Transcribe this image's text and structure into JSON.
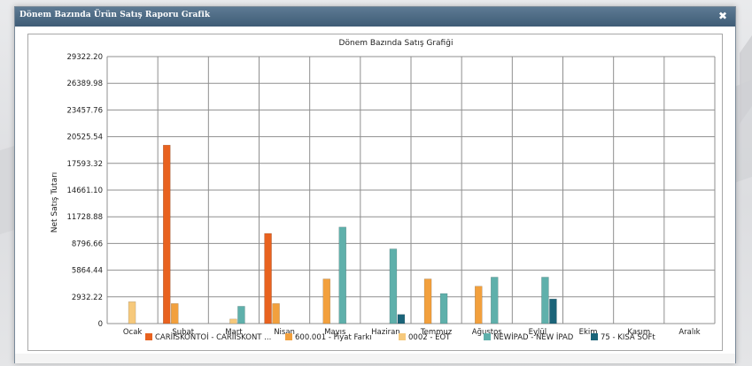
{
  "window": {
    "title": "Dönem Bazında Ürün Satış Raporu Grafik",
    "close_label": "✖"
  },
  "chart_data": {
    "type": "bar",
    "title": "Dönem Bazında Satış Grafiği",
    "xlabel": "",
    "ylabel": "Net Satış Tutarı",
    "ylim": [
      0,
      29322.2
    ],
    "yticks": [
      "29322.20",
      "26389.98",
      "23457.76",
      "20525.54",
      "17593.32",
      "14661.10",
      "11728.88",
      "8796.66",
      "5864.44",
      "2932.22",
      "0"
    ],
    "categories": [
      "Ocak",
      "Şubat",
      "Mart",
      "Nisan",
      "Mayıs",
      "Haziran",
      "Temmuz",
      "Ağustos",
      "Eylül",
      "Ekim",
      "Kasım",
      "Aralık"
    ],
    "grid": true,
    "legend_position": "bottom",
    "series": [
      {
        "name": "CARİİSKONTOİ - CARİİSKONT ...",
        "color": "#e8621f",
        "values": [
          0,
          19600,
          0,
          9900,
          0,
          0,
          0,
          0,
          0,
          0,
          0,
          0
        ]
      },
      {
        "name": "600.001 - Fiyat Farkı",
        "color": "#f2a03d",
        "values": [
          0,
          2200,
          0,
          2200,
          4900,
          0,
          4900,
          4100,
          0,
          0,
          0,
          0
        ]
      },
      {
        "name": "0002 - EOT",
        "color": "#f6c97c",
        "values": [
          2400,
          0,
          500,
          0,
          0,
          0,
          0,
          0,
          0,
          0,
          0,
          0
        ]
      },
      {
        "name": "NEWİPAD - NEW İPAD",
        "color": "#5fb0ab",
        "values": [
          0,
          0,
          1900,
          0,
          10600,
          8200,
          3300,
          5100,
          5100,
          0,
          0,
          0
        ]
      },
      {
        "name": "75 - KISA SOFt",
        "color": "#1b6479",
        "values": [
          0,
          0,
          0,
          0,
          0,
          1000,
          0,
          0,
          2700,
          0,
          0,
          0
        ]
      }
    ]
  }
}
